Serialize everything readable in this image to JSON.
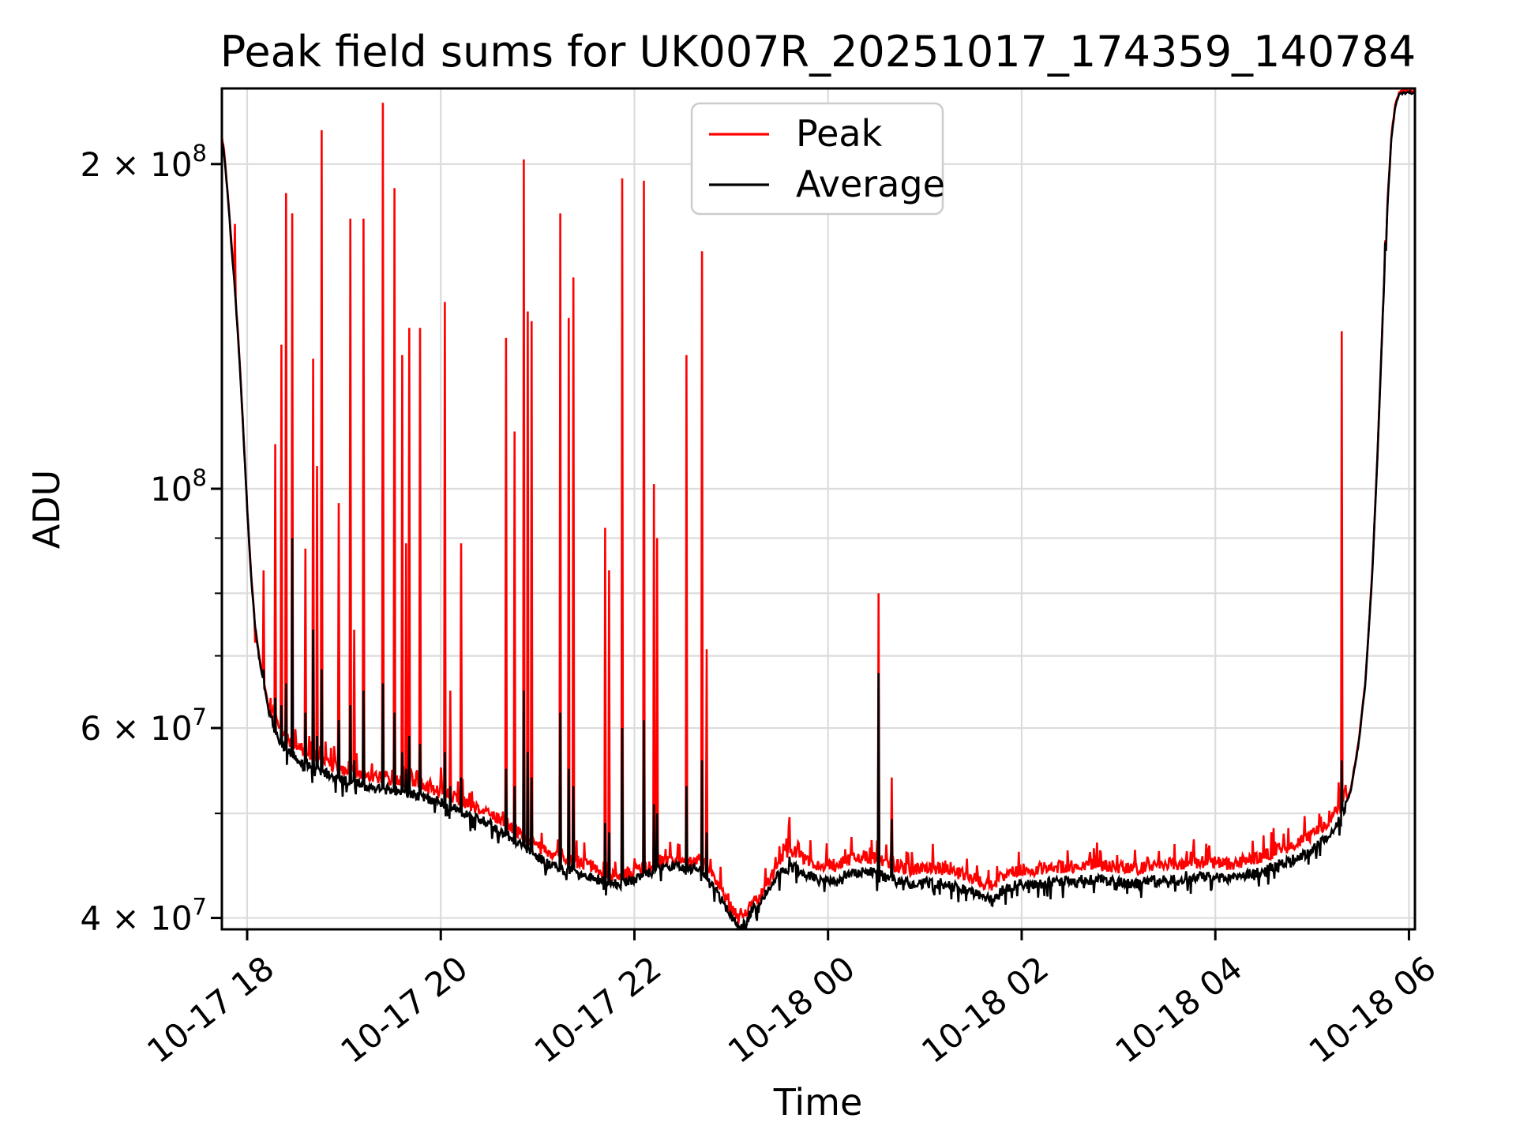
{
  "figure": {
    "background": "#ffffff"
  },
  "chart": {
    "title": "Peak field sums for UK007R_20251017_174359_140784",
    "xlabel": "Time",
    "ylabel": "ADU",
    "legend": {
      "entries": [
        {
          "label": "Peak",
          "color": "#ff0000"
        },
        {
          "label": "Average",
          "color": "#000000"
        }
      ]
    }
  },
  "chart_data": {
    "type": "line",
    "title": "Peak field sums for UK007R_20251017_174359_140784",
    "xlabel": "Time",
    "ylabel": "ADU",
    "grid": true,
    "legend_position": "upper center",
    "x_axis": {
      "unit": "datetime (MM-DD HH), hours since 10-17 00:00",
      "min": 17.73,
      "max": 30.07,
      "ticks": [
        {
          "value": 18,
          "label": "10-17 18"
        },
        {
          "value": 20,
          "label": "10-17 20"
        },
        {
          "value": 22,
          "label": "10-17 22"
        },
        {
          "value": 24,
          "label": "10-18 00"
        },
        {
          "value": 26,
          "label": "10-18 02"
        },
        {
          "value": 28,
          "label": "10-18 04"
        },
        {
          "value": 30,
          "label": "10-18 06"
        }
      ],
      "tick_label_rotation_deg": 38
    },
    "y_axis": {
      "scale": "log",
      "unit": "ADU",
      "min": 39000000.0,
      "max": 234000000.0,
      "labeled_ticks": [
        {
          "value": 200000000.0,
          "coef": "2 × 10",
          "exp": "8"
        },
        {
          "value": 100000000.0,
          "coef": "10",
          "exp": "8"
        },
        {
          "value": 60000000.0,
          "coef": "6 × 10",
          "exp": "7"
        },
        {
          "value": 40000000.0,
          "coef": "4 × 10",
          "exp": "7"
        }
      ],
      "minor_ticks": [
        90000000.0,
        80000000.0,
        70000000.0,
        50000000.0
      ]
    },
    "series": [
      {
        "name": "Peak",
        "color": "#ff0000",
        "linewidth": 2.6
      },
      {
        "name": "Average",
        "color": "#000000",
        "linewidth": 2.6
      }
    ],
    "average_curve": [
      [
        17.73,
        213000000.0
      ],
      [
        17.76,
        205000000.0
      ],
      [
        17.8,
        187000000.0
      ],
      [
        17.84,
        167000000.0
      ],
      [
        17.88,
        150000000.0
      ],
      [
        17.92,
        132000000.0
      ],
      [
        17.96,
        113000000.0
      ],
      [
        18.0,
        96000000.0
      ],
      [
        18.04,
        83000000.0
      ],
      [
        18.08,
        75000000.0
      ],
      [
        18.12,
        70000000.0
      ],
      [
        18.17,
        66000000.0
      ],
      [
        18.22,
        62500000.0
      ],
      [
        18.28,
        60000000.0
      ],
      [
        18.35,
        58000000.0
      ],
      [
        18.45,
        56800000.0
      ],
      [
        18.55,
        56000000.0
      ],
      [
        18.7,
        55000000.0
      ],
      [
        18.85,
        54200000.0
      ],
      [
        19.0,
        53600000.0
      ],
      [
        19.15,
        53200000.0
      ],
      [
        19.3,
        52800000.0
      ],
      [
        19.45,
        52600000.0
      ],
      [
        19.6,
        52300000.0
      ],
      [
        19.75,
        52000000.0
      ],
      [
        19.9,
        51500000.0
      ],
      [
        20.05,
        51000000.0
      ],
      [
        20.15,
        50500000.0
      ],
      [
        20.25,
        50000000.0
      ],
      [
        20.35,
        49500000.0
      ],
      [
        20.45,
        49200000.0
      ],
      [
        20.55,
        48600000.0
      ],
      [
        20.65,
        48000000.0
      ],
      [
        20.75,
        47200000.0
      ],
      [
        20.85,
        46500000.0
      ],
      [
        20.95,
        46000000.0
      ],
      [
        21.05,
        45200000.0
      ],
      [
        21.15,
        44700000.0
      ],
      [
        21.25,
        44300000.0
      ],
      [
        21.4,
        44000000.0
      ],
      [
        21.55,
        43600000.0
      ],
      [
        21.7,
        43200000.0
      ],
      [
        21.85,
        43000000.0
      ],
      [
        21.95,
        43300000.0
      ],
      [
        22.1,
        43800000.0
      ],
      [
        22.25,
        44400000.0
      ],
      [
        22.4,
        44700000.0
      ],
      [
        22.55,
        44300000.0
      ],
      [
        22.65,
        44600000.0
      ],
      [
        22.72,
        44200000.0
      ],
      [
        22.8,
        43000000.0
      ],
      [
        22.9,
        41600000.0
      ],
      [
        23.0,
        40200000.0
      ],
      [
        23.08,
        39300000.0
      ],
      [
        23.15,
        39600000.0
      ],
      [
        23.22,
        40800000.0
      ],
      [
        23.28,
        40800000.0
      ],
      [
        23.35,
        42000000.0
      ],
      [
        23.45,
        43500000.0
      ],
      [
        23.55,
        44400000.0
      ],
      [
        23.65,
        44600000.0
      ],
      [
        23.75,
        44000000.0
      ],
      [
        23.85,
        43600000.0
      ],
      [
        23.95,
        43200000.0
      ],
      [
        24.1,
        43500000.0
      ],
      [
        24.25,
        44100000.0
      ],
      [
        24.4,
        44200000.0
      ],
      [
        24.55,
        43800000.0
      ],
      [
        24.7,
        43300000.0
      ],
      [
        24.85,
        43000000.0
      ],
      [
        25.0,
        43100000.0
      ],
      [
        25.15,
        43100000.0
      ],
      [
        25.3,
        42800000.0
      ],
      [
        25.45,
        42500000.0
      ],
      [
        25.6,
        41800000.0
      ],
      [
        25.7,
        41500000.0
      ],
      [
        25.8,
        42400000.0
      ],
      [
        25.95,
        43000000.0
      ],
      [
        26.15,
        43000000.0
      ],
      [
        26.35,
        43200000.0
      ],
      [
        26.55,
        43300000.0
      ],
      [
        26.75,
        43500000.0
      ],
      [
        26.95,
        43300000.0
      ],
      [
        27.15,
        43000000.0
      ],
      [
        27.35,
        43300000.0
      ],
      [
        27.55,
        43500000.0
      ],
      [
        27.75,
        43500000.0
      ],
      [
        27.95,
        43800000.0
      ],
      [
        28.1,
        43400000.0
      ],
      [
        28.25,
        43700000.0
      ],
      [
        28.4,
        44000000.0
      ],
      [
        28.55,
        44400000.0
      ],
      [
        28.7,
        45000000.0
      ],
      [
        28.85,
        45500000.0
      ],
      [
        29.0,
        46200000.0
      ],
      [
        29.1,
        47000000.0
      ],
      [
        29.2,
        48000000.0
      ],
      [
        29.3,
        49500000.0
      ],
      [
        29.4,
        52500000.0
      ],
      [
        29.48,
        58000000.0
      ],
      [
        29.55,
        66000000.0
      ],
      [
        29.62,
        83000000.0
      ],
      [
        29.68,
        110000000.0
      ],
      [
        29.73,
        145000000.0
      ],
      [
        29.745,
        156000000.0
      ],
      [
        29.752,
        172000000.0
      ],
      [
        29.758,
        162000000.0
      ],
      [
        29.78,
        185000000.0
      ],
      [
        29.82,
        212000000.0
      ],
      [
        29.86,
        227000000.0
      ],
      [
        29.9,
        232000000.0
      ],
      [
        29.95,
        233000000.0
      ],
      [
        30.07,
        233000000.0
      ]
    ],
    "peak_spikes": [
      [
        17.87,
        176000000.0,
        null
      ],
      [
        18.08,
        72000000.0,
        null
      ],
      [
        18.17,
        84000000.0,
        68000000.0
      ],
      [
        18.29,
        110000000.0,
        64000000.0
      ],
      [
        18.35,
        136000000.0,
        63000000.0
      ],
      [
        18.4,
        188000000.0,
        66000000.0
      ],
      [
        18.47,
        180000000.0,
        90000000.0
      ],
      [
        18.6,
        88000000.0,
        62000000.0
      ],
      [
        18.68,
        132000000.0,
        74000000.0
      ],
      [
        18.72,
        105000000.0,
        59000000.0
      ],
      [
        18.77,
        215000000.0,
        68000000.0
      ],
      [
        18.95,
        97000000.0,
        61000000.0
      ],
      [
        19.07,
        178000000.0,
        63000000.0
      ],
      [
        19.11,
        74000000.0,
        56000000.0
      ],
      [
        19.2,
        178000000.0,
        65000000.0
      ],
      [
        19.4,
        228000000.0,
        66000000.0
      ],
      [
        19.52,
        190000000.0,
        62000000.0
      ],
      [
        19.6,
        133000000.0,
        57000000.0
      ],
      [
        19.64,
        89000000.0,
        55000000.0
      ],
      [
        19.67,
        141000000.0,
        59000000.0
      ],
      [
        19.79,
        141000000.0,
        58000000.0
      ],
      [
        20.04,
        149000000.0,
        57000000.0
      ],
      [
        20.1,
        65000000.0,
        53000000.0
      ],
      [
        20.21,
        89000000.0,
        54000000.0
      ],
      [
        20.67,
        138000000.0,
        55000000.0
      ],
      [
        20.76,
        113000000.0,
        53000000.0
      ],
      [
        20.86,
        202000000.0,
        65000000.0
      ],
      [
        20.9,
        146000000.0,
        57000000.0
      ],
      [
        20.94,
        143000000.0,
        54000000.0
      ],
      [
        21.23,
        180000000.0,
        62000000.0
      ],
      [
        21.32,
        144000000.0,
        55000000.0
      ],
      [
        21.37,
        157000000.0,
        53000000.0
      ],
      [
        21.7,
        92000000.0,
        49000000.0
      ],
      [
        21.74,
        84000000.0,
        48000000.0
      ],
      [
        21.87,
        194000000.0,
        60000000.0
      ],
      [
        22.1,
        193000000.0,
        61000000.0
      ],
      [
        22.2,
        101000000.0,
        51000000.0
      ],
      [
        22.23,
        90000000.0,
        50000000.0
      ],
      [
        22.54,
        133000000.0,
        53000000.0
      ],
      [
        22.7,
        166000000.0,
        56000000.0
      ],
      [
        22.75,
        71000000.0,
        48000000.0
      ],
      [
        23.6,
        49600000.0,
        45600000.0
      ],
      [
        24.52,
        80000000.0,
        67500000.0
      ],
      [
        24.66,
        54000000.0,
        49400000.0
      ],
      [
        27.7,
        45500000.0,
        44200000.0
      ],
      [
        29.31,
        140000000.0,
        56000000.0
      ]
    ],
    "peak_offset_segments": [
      {
        "from": 17.73,
        "to": 18.25,
        "factor": 1.006
      },
      {
        "from": 18.25,
        "to": 21.6,
        "factor": 1.025
      },
      {
        "from": 21.6,
        "to": 23.45,
        "factor": 1.016
      },
      {
        "from": 23.45,
        "to": 29.35,
        "factor": 1.032
      },
      {
        "from": 29.35,
        "to": 30.07,
        "factor": 1.005
      }
    ],
    "noise": {
      "average_amp": 0.011,
      "peak_amp": 0.014,
      "quiet_amp": 0.003,
      "quiet_before": 18.22,
      "quiet_after": 29.36
    },
    "style": {
      "grid_color": "#dcdcdc",
      "frame_color": "#000000",
      "legend_border_color": "#cccccc",
      "background": "#ffffff"
    }
  }
}
